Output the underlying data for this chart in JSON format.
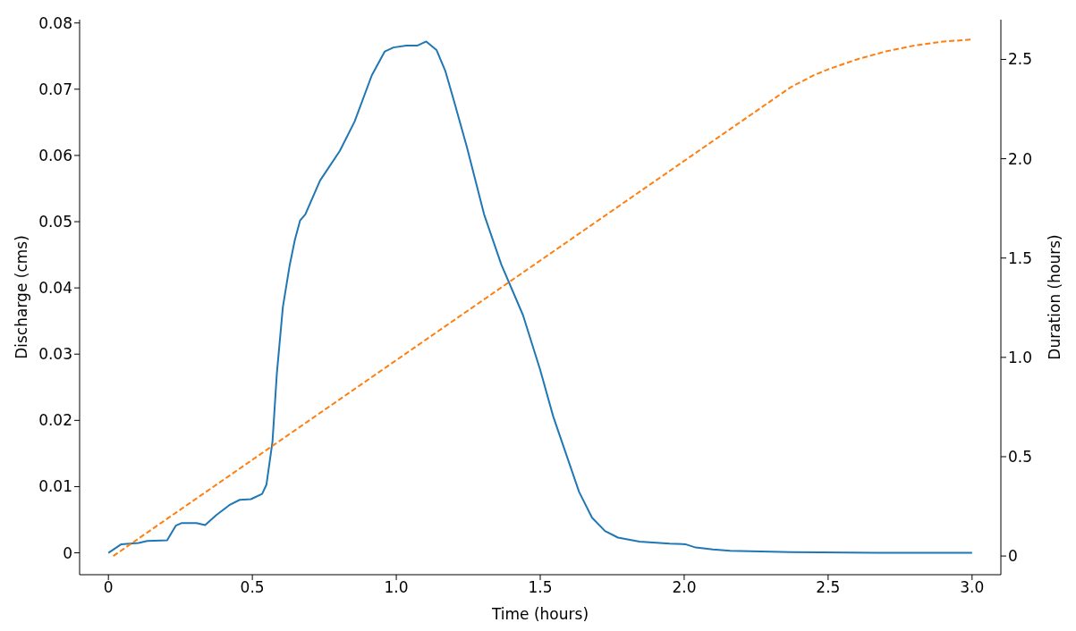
{
  "chart_data": {
    "type": "line",
    "xlabel": "Time (hours)",
    "ylabel": "Discharge (cms)",
    "y2label": "Duration (hours)",
    "xlim": [
      -0.1,
      3.1
    ],
    "xticks": [
      0,
      0.5,
      {
        "value": 1,
        "label": "1.0"
      },
      1.5,
      {
        "value": 2,
        "label": "2.0"
      },
      2.5,
      {
        "value": 3,
        "label": "3.0"
      }
    ],
    "ylim": [
      -0.0033,
      0.0805
    ],
    "yticks": [
      0,
      0.01,
      0.02,
      0.03,
      0.04,
      0.05,
      0.06,
      0.07,
      0.08
    ],
    "y2lim": [
      -0.094,
      2.7
    ],
    "y2ticks": [
      0,
      0.5,
      {
        "value": 1,
        "label": "1.0"
      },
      1.5,
      {
        "value": 2,
        "label": "2.0"
      },
      2.5
    ],
    "marker": "none",
    "series": [
      {
        "color": "#1f77b4",
        "line_style": "solid",
        "x": [
          0,
          0.045,
          0.105,
          0.135,
          0.204,
          0.234,
          0.255,
          0.306,
          0.336,
          0.375,
          0.42,
          0.456,
          0.495,
          0.534,
          0.549,
          0.57,
          0.585,
          0.606,
          0.63,
          0.648,
          0.666,
          0.684,
          0.735,
          0.804,
          0.855,
          0.915,
          0.96,
          0.99,
          1.035,
          1.074,
          1.104,
          1.14,
          1.17,
          1.2,
          1.245,
          1.305,
          1.365,
          1.44,
          1.5,
          1.545,
          1.59,
          1.635,
          1.68,
          1.725,
          1.77,
          1.845,
          1.95,
          2.004,
          2.04,
          2.1,
          2.16,
          2.37,
          2.67,
          3.0
        ],
        "values": [
          0,
          0.0013,
          0.0015,
          0.0018,
          0.0019,
          0.0041,
          0.0045,
          0.0045,
          0.0042,
          0.0057,
          0.0072,
          0.008,
          0.0081,
          0.0089,
          0.0103,
          0.0168,
          0.027,
          0.0371,
          0.0435,
          0.0473,
          0.0502,
          0.0511,
          0.0562,
          0.0607,
          0.0651,
          0.0721,
          0.0757,
          0.0763,
          0.0766,
          0.0766,
          0.0772,
          0.0759,
          0.0728,
          0.0683,
          0.0613,
          0.0511,
          0.0435,
          0.0359,
          0.0276,
          0.0206,
          0.0149,
          0.0092,
          0.0053,
          0.0033,
          0.0023,
          0.0017,
          0.0014,
          0.0013,
          0.0008,
          0.0005,
          0.0003,
          0.0001,
          0,
          0
        ]
      },
      {
        "color": "#ff7f0e",
        "line_style": "dashed",
        "axis": "y2",
        "x": [
          0.017,
          2.37,
          2.45,
          2.5,
          2.6,
          2.7,
          2.8,
          2.9,
          3.0
        ],
        "values": [
          0,
          2.36,
          2.42,
          2.45,
          2.5,
          2.54,
          2.57,
          2.59,
          2.6
        ]
      }
    ]
  }
}
